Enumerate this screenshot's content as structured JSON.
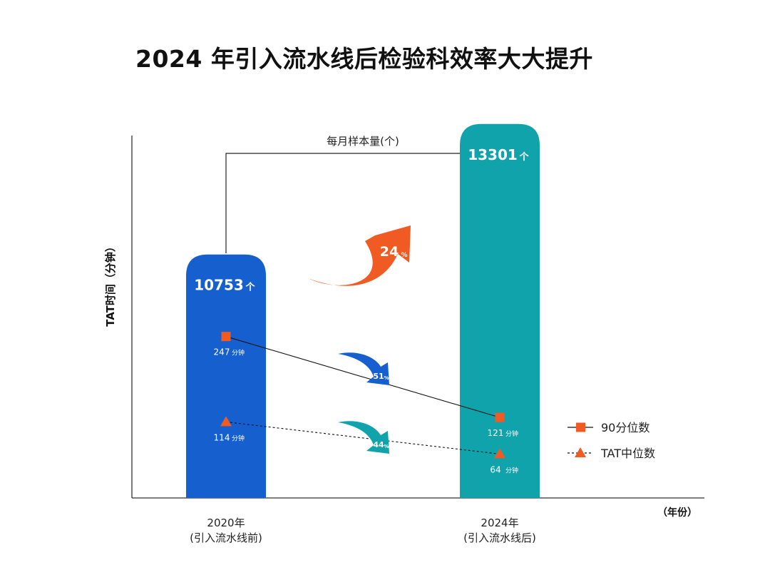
{
  "title": "2024 年引入流水线后检验科效率大大提升",
  "chart_data": {
    "type": "bar",
    "categories": [
      "2020年\n(引入流水线前)",
      "2024年\n(引入流水线后)"
    ],
    "category_lines": [
      [
        "2020年",
        "(引入流水线前)"
      ],
      [
        "2024年",
        "(引入流水线后)"
      ]
    ],
    "bar_series": {
      "name": "每月样本量(个)",
      "values": [
        10753,
        13301
      ],
      "unit": "个",
      "colors": [
        "#1560CE",
        "#11A3AC"
      ]
    },
    "line_series": [
      {
        "name": "90分位数",
        "values": [
          247,
          121
        ],
        "unit": "分钟",
        "marker": "square",
        "line_style": "solid"
      },
      {
        "name": "TAT中位数",
        "values": [
          114,
          64
        ],
        "unit": "分钟",
        "marker": "triangle",
        "line_style": "dotted"
      }
    ],
    "annotations": [
      {
        "target": "每月样本量(个)",
        "value": 24,
        "unit": "%",
        "direction": "increase",
        "color": "#EF5B22"
      },
      {
        "target": "90分位数",
        "value": 51,
        "unit": "%",
        "direction": "decrease",
        "color": "#1560CE"
      },
      {
        "target": "TAT中位数",
        "value": 44,
        "unit": "%",
        "direction": "decrease",
        "color": "#11A3AC"
      }
    ],
    "ylabel": "TAT时间（分钟）",
    "xlabel": "（年份）",
    "legend_position": "right",
    "marker_color": "#EF5B22",
    "grid": false
  }
}
